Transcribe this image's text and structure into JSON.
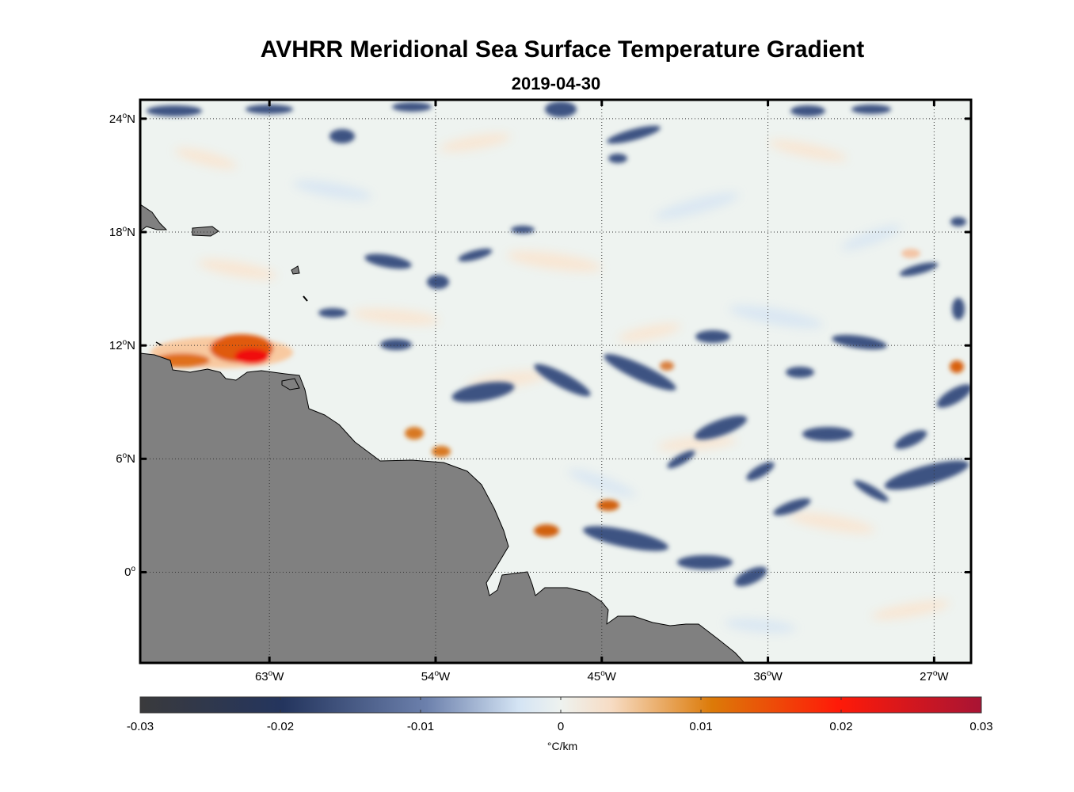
{
  "title": "AVHRR Meridional Sea Surface Temperature Gradient",
  "subtitle": "2019-04-30",
  "colors": {
    "land": "#808080",
    "frame": "#000000",
    "grid": "#333333"
  },
  "axes": {
    "lat_ticks": [
      {
        "value": 24,
        "deg": "24",
        "hem": "N"
      },
      {
        "value": 18,
        "deg": "18",
        "hem": "N"
      },
      {
        "value": 12,
        "deg": "12",
        "hem": "N"
      },
      {
        "value": 6,
        "deg": "6",
        "hem": "N"
      },
      {
        "value": 0,
        "deg": "0",
        "hem": ""
      }
    ],
    "lon_ticks": [
      {
        "value": -63,
        "deg": "63",
        "hem": "W"
      },
      {
        "value": -54,
        "deg": "54",
        "hem": "W"
      },
      {
        "value": -45,
        "deg": "45",
        "hem": "W"
      },
      {
        "value": -36,
        "deg": "36",
        "hem": "W"
      },
      {
        "value": -27,
        "deg": "27",
        "hem": "W"
      }
    ],
    "lon_range": [
      -70,
      -25
    ],
    "lat_range": [
      -4.8,
      25
    ],
    "degree_symbol": "o"
  },
  "colorbar": {
    "range": [
      -0.03,
      0.03
    ],
    "ticks": [
      "-0.03",
      "-0.02",
      "-0.01",
      "0",
      "0.01",
      "0.02",
      "0.03"
    ],
    "unit": "°C/km"
  }
}
